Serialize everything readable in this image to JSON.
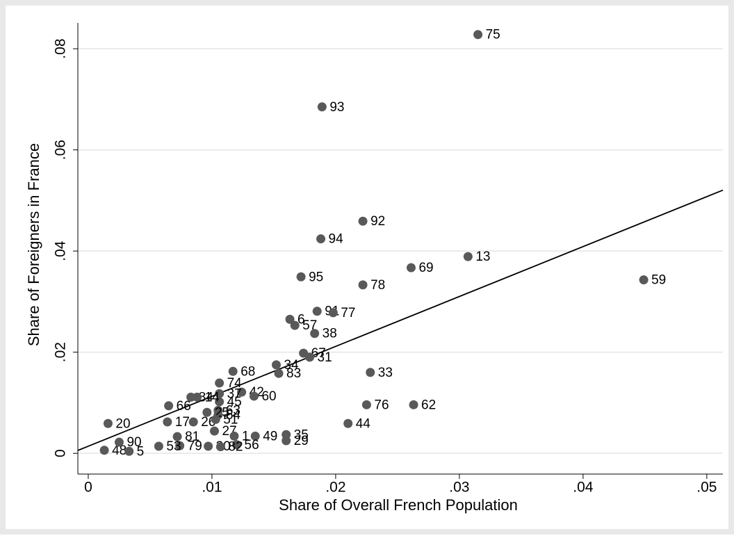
{
  "chart_data": {
    "type": "scatter",
    "x_label": "Share of Overall French Population",
    "y_label": "Share of Foreigners in France",
    "color": "#595959",
    "grid": true,
    "xlim": [
      -0.00084,
      0.0513
    ],
    "ylim": [
      -0.0041,
      0.0851
    ],
    "xticks": [
      0,
      {
        "value": 0.01,
        "label": ".01"
      },
      {
        "value": 0.02,
        "label": ".02"
      },
      {
        "value": 0.03,
        "label": ".03"
      },
      {
        "value": 0.04,
        "label": ".04"
      },
      {
        "value": 0.05,
        "label": ".05"
      }
    ],
    "yticks": [
      0,
      {
        "value": 0.02,
        "label": ".02"
      },
      {
        "value": 0.04,
        "label": ".04"
      },
      {
        "value": 0.06,
        "label": ".06"
      },
      {
        "value": 0.08,
        "label": ".08"
      }
    ],
    "fit": {
      "intercept": 0.0014,
      "slope": 0.987
    },
    "labels": [
      "75",
      "93",
      "92",
      "94",
      "13",
      "69",
      "59",
      "95",
      "78",
      "91",
      "77",
      "6",
      "57",
      "38",
      "67",
      "31",
      "34",
      "68",
      "33",
      "83",
      "74",
      "42",
      "37",
      "60",
      "45",
      "76",
      "62",
      "66",
      "84",
      "14",
      "63",
      "64",
      "44",
      "20",
      "49",
      "35",
      "29",
      "56",
      "48",
      "90",
      "17",
      "26",
      "25",
      "51",
      "27",
      "1",
      "79",
      "53",
      "30",
      "82",
      "5",
      "81"
    ],
    "x": [
      0.0315,
      0.0189,
      0.0222,
      0.0188,
      0.0307,
      0.0261,
      0.0449,
      0.0172,
      0.0222,
      0.0185,
      0.0198,
      0.0163,
      0.0167,
      0.0183,
      0.0174,
      0.0179,
      0.0152,
      0.0117,
      0.0228,
      0.0154,
      0.0106,
      0.0124,
      0.0106,
      0.0134,
      0.0106,
      0.0225,
      0.0263,
      0.0065,
      0.0083,
      0.0088,
      0.0105,
      0.0105,
      0.021,
      0.0016,
      0.0135,
      0.016,
      0.016,
      0.012,
      0.0013,
      0.0025,
      0.0064,
      0.0085,
      0.0096,
      0.0103,
      0.0102,
      0.0118,
      0.0074,
      0.0057,
      0.0097,
      0.0107,
      0.0033,
      0.0072
    ],
    "y": [
      0.0828,
      0.0685,
      0.0459,
      0.0424,
      0.0389,
      0.0367,
      0.0343,
      0.0349,
      0.0333,
      0.0281,
      0.0278,
      0.0265,
      0.0253,
      0.0237,
      0.0198,
      0.019,
      0.0175,
      0.0162,
      0.016,
      0.0158,
      0.0139,
      0.0121,
      0.0118,
      0.0113,
      0.0102,
      0.0096,
      0.0096,
      0.0094,
      0.0111,
      0.0111,
      0.0085,
      0.0076,
      0.0059,
      0.0059,
      0.0034,
      0.0037,
      0.0025,
      0.0017,
      0.0006,
      0.0022,
      0.0062,
      0.0062,
      0.0081,
      0.0067,
      0.0044,
      0.0034,
      0.0015,
      0.0014,
      0.0014,
      0.0013,
      0.0004,
      0.0033
    ]
  }
}
